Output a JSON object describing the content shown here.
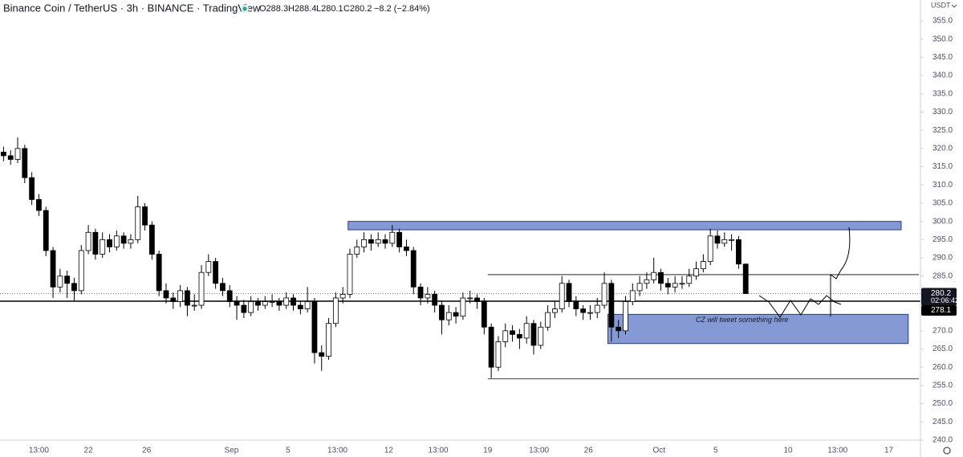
{
  "chart_data": {
    "type": "candlestick",
    "title": "Binance Coin / TetherUS · 3h · BINANCE · TradingView",
    "legend": {
      "open": "O288.3",
      "high": "H288.4",
      "low": "L280.1",
      "close": "C280.2",
      "change": "−8.2 (−2.84%)"
    },
    "currency": "USDT",
    "annotation": "CZ will tweet something here",
    "last_price": {
      "value": 280.2,
      "label": "280.2"
    },
    "countdown": "02:06:42",
    "level_line": {
      "value": 278.1,
      "label": "278.1"
    },
    "zones": [
      {
        "from": 197,
        "to": 510,
        "y": [
          297.7,
          300
        ]
      },
      {
        "from": 344,
        "to": 514,
        "y": [
          266.5,
          274.5
        ]
      }
    ],
    "hlines": [
      {
        "from": 276,
        "to": 520,
        "value": 285.4
      },
      {
        "from": 276,
        "to": 520,
        "value": 256.8
      }
    ],
    "xlim": [
      0,
      520
    ],
    "ylim": [
      240,
      355
    ],
    "grid": false,
    "up_color": "#ffffff",
    "down_color": "#000000",
    "wick_color": "#000000",
    "xticks": [
      {
        "value": 22,
        "label": "13:00"
      },
      {
        "value": 50,
        "label": "22"
      },
      {
        "value": 83,
        "label": "26"
      },
      {
        "value": 131,
        "label": "Sep"
      },
      {
        "value": 163,
        "label": "5"
      },
      {
        "value": 191,
        "label": "13:00"
      },
      {
        "value": 220,
        "label": "12"
      },
      {
        "value": 248,
        "label": "13:00"
      },
      {
        "value": 276,
        "label": "19"
      },
      {
        "value": 305,
        "label": "13:00"
      },
      {
        "value": 333,
        "label": "26"
      },
      {
        "value": 373,
        "label": "Oct"
      },
      {
        "value": 405,
        "label": "5"
      },
      {
        "value": 446,
        "label": "10"
      },
      {
        "value": 474,
        "label": "13:00"
      },
      {
        "value": 503,
        "label": "17"
      }
    ],
    "yticks": [
      {
        "value": 355,
        "label": "355.0"
      },
      {
        "value": 350,
        "label": "350.0"
      },
      {
        "value": 345,
        "label": "345.0"
      },
      {
        "value": 340,
        "label": "340.0"
      },
      {
        "value": 335,
        "label": "335.0"
      },
      {
        "value": 330,
        "label": "330.0"
      },
      {
        "value": 325,
        "label": "325.0"
      },
      {
        "value": 320,
        "label": "320.0"
      },
      {
        "value": 315,
        "label": "315.0"
      },
      {
        "value": 310,
        "label": "310.0"
      },
      {
        "value": 305,
        "label": "305.0"
      },
      {
        "value": 300,
        "label": "300.0"
      },
      {
        "value": 295,
        "label": "295.0"
      },
      {
        "value": 290,
        "label": "290.0"
      },
      {
        "value": 285,
        "label": "285.0"
      },
      {
        "value": 280,
        "label": "280.0"
      },
      {
        "value": 275,
        "label": "275.0"
      },
      {
        "value": 270,
        "label": "270.0"
      },
      {
        "value": 265,
        "label": "265.0"
      },
      {
        "value": 260,
        "label": "260.0"
      },
      {
        "value": 255,
        "label": "255.0"
      },
      {
        "value": 250,
        "label": "250.0"
      },
      {
        "value": 245,
        "label": "245.0"
      },
      {
        "value": 240,
        "label": "240.0"
      }
    ],
    "x": [
      2,
      6,
      10,
      14,
      18,
      22,
      26,
      30,
      34,
      38,
      42,
      46,
      50,
      54,
      58,
      62,
      66,
      70,
      74,
      78,
      82,
      86,
      90,
      94,
      98,
      102,
      106,
      110,
      114,
      118,
      122,
      126,
      130,
      134,
      138,
      142,
      146,
      150,
      154,
      158,
      162,
      166,
      170,
      174,
      178,
      182,
      186,
      190,
      194,
      198,
      202,
      206,
      210,
      214,
      218,
      222,
      226,
      230,
      234,
      238,
      242,
      246,
      250,
      254,
      258,
      262,
      266,
      270,
      274,
      278,
      282,
      286,
      290,
      294,
      298,
      302,
      306,
      310,
      314,
      318,
      322,
      326,
      330,
      334,
      338,
      342,
      346,
      350,
      354,
      358,
      362,
      366,
      370,
      374,
      378,
      382,
      386,
      390,
      394,
      398,
      402,
      406,
      410,
      414,
      418,
      422
    ],
    "ohlc": [
      [
        319,
        320.5,
        316.5,
        318
      ],
      [
        318,
        319.5,
        315.5,
        317
      ],
      [
        317,
        323,
        316,
        320
      ],
      [
        320,
        321,
        310.5,
        312
      ],
      [
        312,
        313.5,
        304.5,
        306
      ],
      [
        306,
        307.5,
        301.5,
        303
      ],
      [
        303,
        304,
        290.5,
        292
      ],
      [
        292,
        293,
        279,
        282
      ],
      [
        282,
        287,
        280.5,
        285
      ],
      [
        285,
        286.5,
        279,
        283
      ],
      [
        283,
        284.5,
        278,
        281
      ],
      [
        281,
        293.5,
        280,
        292
      ],
      [
        292,
        299,
        291,
        297
      ],
      [
        297,
        298,
        289.5,
        291
      ],
      [
        291,
        297,
        290,
        295
      ],
      [
        295,
        296.5,
        291.5,
        293
      ],
      [
        293,
        297.5,
        292,
        296
      ],
      [
        296,
        297,
        292.5,
        294
      ],
      [
        294,
        296.5,
        292.5,
        295
      ],
      [
        295,
        307,
        294,
        304
      ],
      [
        304,
        305,
        297.5,
        299
      ],
      [
        299,
        300,
        289.5,
        291
      ],
      [
        291,
        292,
        279.5,
        281
      ],
      [
        281,
        283,
        277.5,
        279
      ],
      [
        279,
        280.5,
        276,
        278
      ],
      [
        278,
        282.5,
        276.5,
        281
      ],
      [
        281,
        282,
        274,
        277
      ],
      [
        277,
        280,
        275.5,
        277
      ],
      [
        277,
        288,
        276,
        286
      ],
      [
        286,
        291,
        285,
        289
      ],
      [
        289,
        290,
        281.5,
        283
      ],
      [
        283,
        284.5,
        279.5,
        281
      ],
      [
        281,
        282.5,
        276.5,
        278
      ],
      [
        278,
        279.5,
        273,
        277
      ],
      [
        277,
        278.5,
        273.5,
        275
      ],
      [
        275,
        279.5,
        274,
        278
      ],
      [
        278,
        279,
        275.5,
        277
      ],
      [
        277,
        279.5,
        276,
        278
      ],
      [
        278,
        280,
        276.5,
        278
      ],
      [
        278,
        279,
        275.5,
        277
      ],
      [
        277,
        280.5,
        276,
        279
      ],
      [
        279,
        280,
        275.5,
        277
      ],
      [
        277,
        278,
        274.5,
        276
      ],
      [
        276,
        282,
        275,
        278
      ],
      [
        278,
        279,
        261,
        264
      ],
      [
        264,
        266,
        259,
        263
      ],
      [
        263,
        273.5,
        262,
        272
      ],
      [
        272,
        280.5,
        271,
        279
      ],
      [
        279,
        282,
        277.5,
        280
      ],
      [
        280,
        292.5,
        279,
        291
      ],
      [
        291,
        295,
        290,
        293
      ],
      [
        293,
        297,
        291.5,
        295
      ],
      [
        295,
        296.5,
        292,
        294
      ],
      [
        294,
        297,
        293,
        295
      ],
      [
        295,
        296.5,
        292.5,
        294
      ],
      [
        294,
        299,
        293,
        297
      ],
      [
        297,
        298,
        291.5,
        293
      ],
      [
        293,
        295,
        290.5,
        292
      ],
      [
        292,
        293,
        280,
        282
      ],
      [
        282,
        283,
        277,
        279
      ],
      [
        279,
        282,
        277.5,
        280
      ],
      [
        280,
        281,
        275,
        277
      ],
      [
        277,
        278,
        269,
        273
      ],
      [
        273,
        277,
        271.5,
        275
      ],
      [
        275,
        276.5,
        272,
        274
      ],
      [
        274,
        280.5,
        273,
        279
      ],
      [
        279,
        281,
        277.5,
        279
      ],
      [
        279,
        280,
        276,
        278
      ],
      [
        278,
        279,
        269,
        271
      ],
      [
        271,
        272,
        257,
        260
      ],
      [
        260,
        268.5,
        259,
        267
      ],
      [
        267,
        272,
        265.5,
        270
      ],
      [
        270,
        271.5,
        267,
        269
      ],
      [
        269,
        270.5,
        265,
        268
      ],
      [
        268,
        274,
        266.5,
        272
      ],
      [
        272,
        273,
        263.5,
        266
      ],
      [
        266,
        272.5,
        265,
        271
      ],
      [
        271,
        277,
        270,
        275
      ],
      [
        275,
        278,
        273.5,
        276
      ],
      [
        276,
        285,
        275,
        283
      ],
      [
        283,
        284,
        276.5,
        278
      ],
      [
        278,
        279.5,
        274,
        276
      ],
      [
        276,
        277,
        273,
        275
      ],
      [
        275,
        277,
        273,
        275
      ],
      [
        275,
        279,
        273.5,
        277
      ],
      [
        277,
        286,
        276,
        283
      ],
      [
        283,
        284,
        267,
        271
      ],
      [
        271,
        273,
        268,
        270
      ],
      [
        270,
        279.5,
        269,
        278
      ],
      [
        278,
        283,
        277,
        281
      ],
      [
        281,
        285,
        279.5,
        283
      ],
      [
        283,
        286,
        281.5,
        284
      ],
      [
        284,
        290,
        283,
        286
      ],
      [
        286,
        287,
        281,
        283
      ],
      [
        283,
        284.5,
        280,
        282
      ],
      [
        282,
        285,
        280.5,
        283
      ],
      [
        283,
        285,
        281.5,
        283
      ],
      [
        283,
        287,
        282,
        285
      ],
      [
        285,
        289,
        284,
        287
      ],
      [
        287,
        291,
        286,
        289
      ],
      [
        289,
        298,
        288,
        296
      ],
      [
        296,
        297.5,
        292.5,
        294
      ],
      [
        294,
        297,
        293,
        295
      ],
      [
        295,
        296.5,
        292,
        295
      ],
      [
        295,
        296,
        287,
        288.3
      ],
      [
        288.3,
        288.4,
        280.1,
        280.2
      ]
    ]
  }
}
